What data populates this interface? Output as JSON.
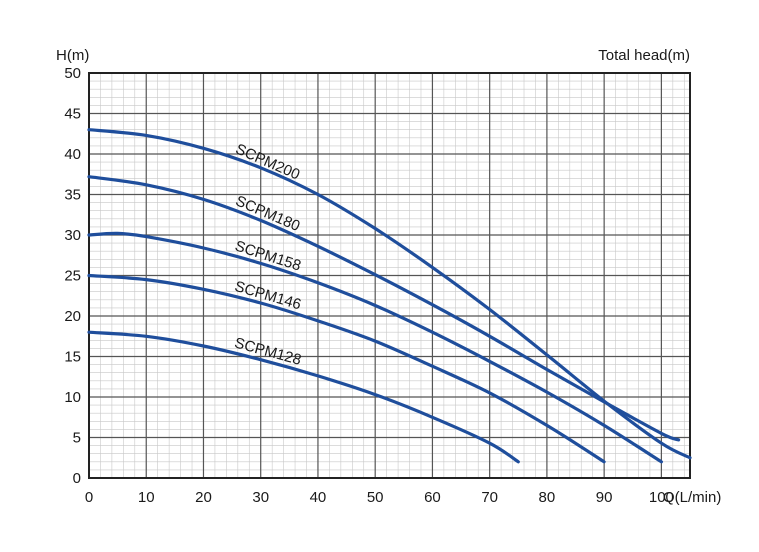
{
  "chart_data": {
    "type": "line",
    "title": "Total head(m)",
    "ylabel": "H(m)",
    "xlabel": "Q(L/min)",
    "xlim": [
      0,
      105
    ],
    "ylim": [
      0,
      50
    ],
    "xticks": [
      0,
      10,
      20,
      30,
      40,
      50,
      60,
      70,
      80,
      90,
      100
    ],
    "yticks": [
      0,
      5,
      10,
      15,
      20,
      25,
      30,
      35,
      40,
      45,
      50
    ],
    "grid": true,
    "line_color": "#1f4e9c",
    "series": [
      {
        "name": "SCPM200",
        "x": [
          0,
          10,
          20,
          30,
          40,
          50,
          60,
          70,
          80,
          90,
          100,
          105
        ],
        "y": [
          43,
          42.3,
          40.7,
          38.3,
          35,
          30.8,
          26,
          20.8,
          15.2,
          9.5,
          4.3,
          2.5
        ]
      },
      {
        "name": "SCPM180",
        "x": [
          0,
          10,
          20,
          30,
          40,
          50,
          60,
          70,
          80,
          90,
          100,
          103
        ],
        "y": [
          37.2,
          36.2,
          34.4,
          31.8,
          28.6,
          25.1,
          21.4,
          17.5,
          13.4,
          9.4,
          5.5,
          4.7
        ]
      },
      {
        "name": "SCPM158",
        "x": [
          0,
          5,
          10,
          20,
          30,
          40,
          50,
          60,
          70,
          80,
          90,
          100
        ],
        "y": [
          30,
          30.2,
          29.8,
          28.4,
          26.5,
          24.1,
          21.3,
          18,
          14.4,
          10.6,
          6.5,
          2
        ]
      },
      {
        "name": "SCPM146",
        "x": [
          0,
          10,
          20,
          30,
          40,
          50,
          60,
          70,
          80,
          90
        ],
        "y": [
          25,
          24.5,
          23.3,
          21.6,
          19.4,
          16.9,
          13.8,
          10.5,
          6.5,
          2
        ]
      },
      {
        "name": "SCPM128",
        "x": [
          0,
          10,
          20,
          30,
          40,
          50,
          60,
          70,
          75
        ],
        "y": [
          18,
          17.5,
          16.3,
          14.6,
          12.6,
          10.3,
          7.5,
          4.3,
          2
        ]
      }
    ]
  }
}
